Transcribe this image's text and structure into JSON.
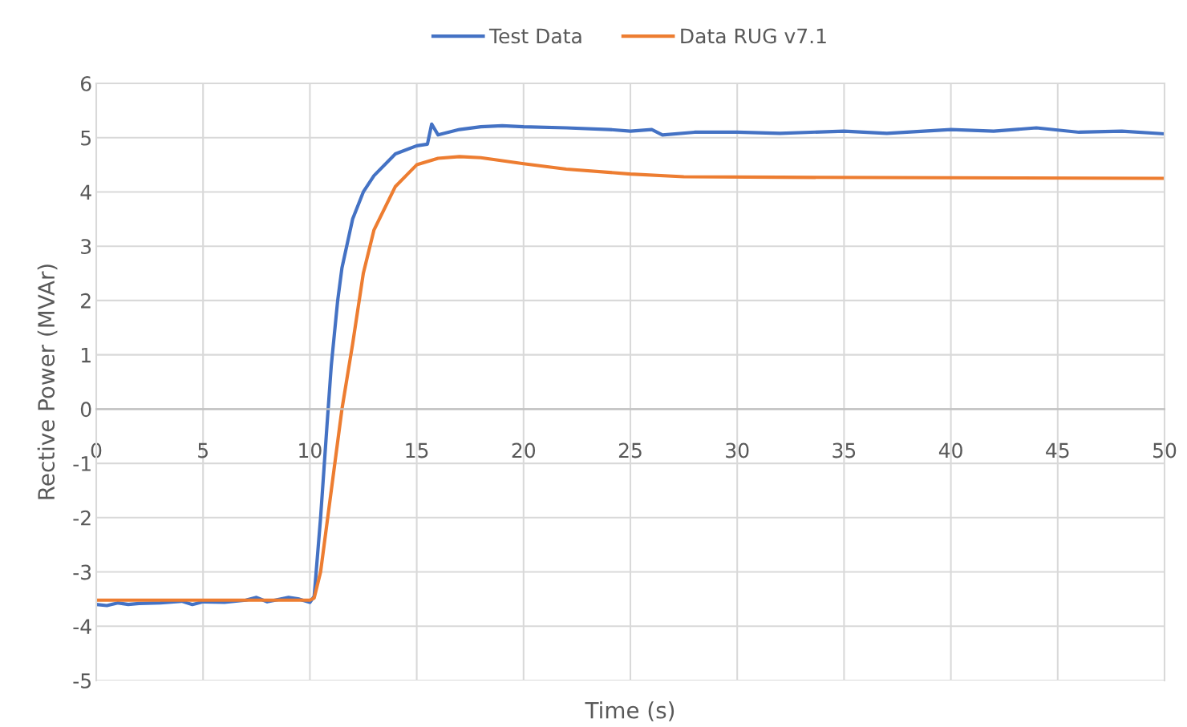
{
  "chart_data": {
    "type": "line",
    "xlabel": "Time (s)",
    "ylabel": "Rective Power (MVAr)",
    "xlim": [
      0,
      50
    ],
    "xticks": [
      0,
      5,
      10,
      15,
      20,
      25,
      30,
      35,
      40,
      45,
      50
    ],
    "ylim": [
      -5,
      6
    ],
    "yticks": [
      -5,
      -4,
      -3,
      -2,
      -1,
      0,
      1,
      2,
      3,
      4,
      5,
      6
    ],
    "grid": true,
    "legend": "top",
    "marker": "none",
    "line_style": "solid",
    "series": [
      {
        "name": "Test Data",
        "color": "#4472c4",
        "x": [
          0,
          0.5,
          1,
          1.5,
          2,
          3,
          4,
          4.5,
          5,
          6,
          7,
          7.5,
          8,
          9,
          9.5,
          10,
          10.2,
          10.5,
          10.8,
          11,
          11.3,
          11.5,
          12,
          12.5,
          13,
          14,
          15,
          15.5,
          15.7,
          16,
          17,
          18,
          19,
          20,
          22,
          24,
          25,
          26,
          26.5,
          28,
          30,
          32,
          35,
          37,
          40,
          42,
          44,
          46,
          48,
          50
        ],
        "values": [
          -3.6,
          -3.62,
          -3.57,
          -3.6,
          -3.58,
          -3.57,
          -3.54,
          -3.6,
          -3.55,
          -3.56,
          -3.52,
          -3.47,
          -3.55,
          -3.47,
          -3.5,
          -3.56,
          -3.45,
          -2.0,
          -0.3,
          0.8,
          2.0,
          2.6,
          3.5,
          4.0,
          4.3,
          4.7,
          4.85,
          4.88,
          5.25,
          5.05,
          5.15,
          5.2,
          5.22,
          5.2,
          5.18,
          5.15,
          5.12,
          5.15,
          5.05,
          5.1,
          5.1,
          5.08,
          5.12,
          5.08,
          5.15,
          5.12,
          5.18,
          5.1,
          5.12,
          5.07
        ]
      },
      {
        "name": "Data RUG v7.1",
        "color": "#ed7d31",
        "x": [
          0,
          5,
          10,
          10.2,
          10.5,
          11,
          11.5,
          12,
          12.5,
          13,
          14,
          15,
          16,
          17,
          18,
          20,
          22,
          25,
          27.5,
          32,
          50
        ],
        "values": [
          -3.52,
          -3.52,
          -3.52,
          -3.48,
          -3.0,
          -1.5,
          0.0,
          1.2,
          2.5,
          3.3,
          4.1,
          4.5,
          4.62,
          4.65,
          4.63,
          4.52,
          4.42,
          4.33,
          4.28,
          4.27,
          4.25
        ]
      }
    ]
  }
}
